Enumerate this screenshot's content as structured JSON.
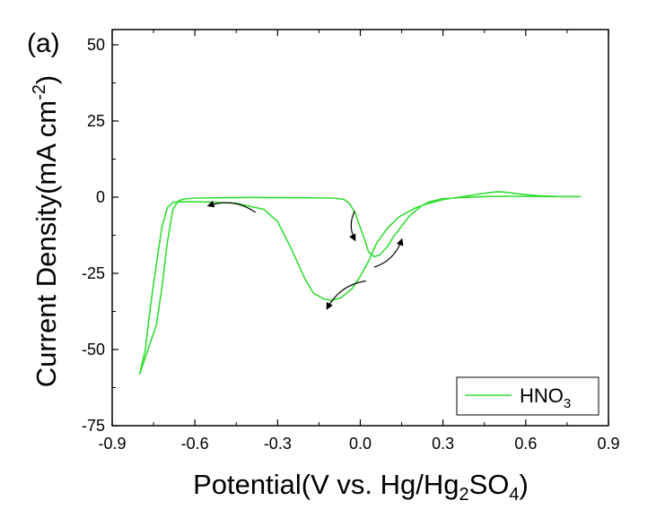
{
  "panel_label": "(a)",
  "chart_data": {
    "type": "line",
    "xlabel": {
      "main": "Potential(V vs. Hg/Hg",
      "sub1": "2",
      "mid": "SO",
      "sub2": "4",
      "end": ")"
    },
    "ylabel": {
      "main": "Current Density(mA cm",
      "sup": "-2",
      "end": ")"
    },
    "xlim": [
      -0.9,
      0.9
    ],
    "ylim": [
      -75,
      55
    ],
    "x_ticks": [
      -0.9,
      -0.6,
      -0.3,
      0.0,
      0.3,
      0.6,
      0.9
    ],
    "x_tick_labels": [
      "-0.9",
      "-0.6",
      "-0.3",
      "0.0",
      "0.3",
      "0.6",
      "0.9"
    ],
    "y_ticks": [
      50,
      25,
      0,
      -25,
      -50,
      -75
    ],
    "y_tick_labels": [
      "50",
      "25",
      "0",
      "-25",
      "-50",
      "-75"
    ],
    "grid": false,
    "legend": {
      "position": "bottom-right",
      "label_main": "HNO",
      "label_sub": "3"
    },
    "series": [
      {
        "name": "HNO3",
        "color": "#33dd33",
        "points": [
          [
            0.8,
            0.2
          ],
          [
            0.7,
            0.2
          ],
          [
            0.55,
            0.3
          ],
          [
            0.45,
            0.2
          ],
          [
            0.35,
            -0.2
          ],
          [
            0.3,
            -0.5
          ],
          [
            0.25,
            -1.5
          ],
          [
            0.22,
            -3.0
          ],
          [
            0.18,
            -6.0
          ],
          [
            0.15,
            -9.5
          ],
          [
            0.12,
            -13.0
          ],
          [
            0.1,
            -16.0
          ],
          [
            0.07,
            -19.0
          ],
          [
            0.05,
            -19.5
          ],
          [
            0.03,
            -18.0
          ],
          [
            0.02,
            -15.0
          ],
          [
            0.0,
            -10.0
          ],
          [
            -0.02,
            -5.0
          ],
          [
            -0.04,
            -2.0
          ],
          [
            -0.06,
            -0.7
          ],
          [
            -0.1,
            -0.3
          ],
          [
            -0.2,
            -0.2
          ],
          [
            -0.4,
            -0.1
          ],
          [
            -0.6,
            -0.3
          ],
          [
            -0.64,
            -0.6
          ],
          [
            -0.66,
            -1.2
          ],
          [
            -0.68,
            -4.0
          ],
          [
            -0.7,
            -15.0
          ],
          [
            -0.72,
            -30.0
          ],
          [
            -0.74,
            -42.0
          ],
          [
            -0.77,
            -50.0
          ],
          [
            -0.8,
            -58.0
          ],
          [
            -0.78,
            -50.0
          ],
          [
            -0.76,
            -35.0
          ],
          [
            -0.74,
            -22.0
          ],
          [
            -0.72,
            -10.0
          ],
          [
            -0.7,
            -3.5
          ],
          [
            -0.68,
            -1.7
          ],
          [
            -0.64,
            -1.5
          ],
          [
            -0.55,
            -1.6
          ],
          [
            -0.45,
            -2.0
          ],
          [
            -0.35,
            -4.0
          ],
          [
            -0.3,
            -8.0
          ],
          [
            -0.25,
            -17.0
          ],
          [
            -0.2,
            -27.0
          ],
          [
            -0.17,
            -31.5
          ],
          [
            -0.13,
            -33.5
          ],
          [
            -0.1,
            -33.8
          ],
          [
            -0.07,
            -33.0
          ],
          [
            -0.03,
            -30.0
          ],
          [
            0.0,
            -26.0
          ],
          [
            0.03,
            -21.0
          ],
          [
            0.06,
            -15.0
          ],
          [
            0.1,
            -10.0
          ],
          [
            0.14,
            -6.5
          ],
          [
            0.2,
            -3.5
          ],
          [
            0.25,
            -2.0
          ],
          [
            0.3,
            -0.8
          ],
          [
            0.4,
            0.6
          ],
          [
            0.46,
            1.4
          ],
          [
            0.5,
            1.8
          ],
          [
            0.53,
            1.6
          ],
          [
            0.58,
            1.0
          ],
          [
            0.65,
            0.4
          ],
          [
            0.72,
            0.2
          ],
          [
            0.8,
            0.2
          ]
        ]
      }
    ],
    "annotations": [
      {
        "type": "arrow",
        "from": [
          -0.38,
          -5.0
        ],
        "to": [
          -0.55,
          -2.8
        ]
      },
      {
        "type": "arrow",
        "from": [
          -0.02,
          -4.5
        ],
        "to": [
          -0.02,
          -14.0
        ]
      },
      {
        "type": "arrow",
        "from": [
          0.05,
          -23.0
        ],
        "to": [
          0.15,
          -14.0
        ]
      },
      {
        "type": "arrow",
        "from": [
          0.02,
          -27.5
        ],
        "to": [
          -0.12,
          -36.5
        ]
      }
    ]
  }
}
